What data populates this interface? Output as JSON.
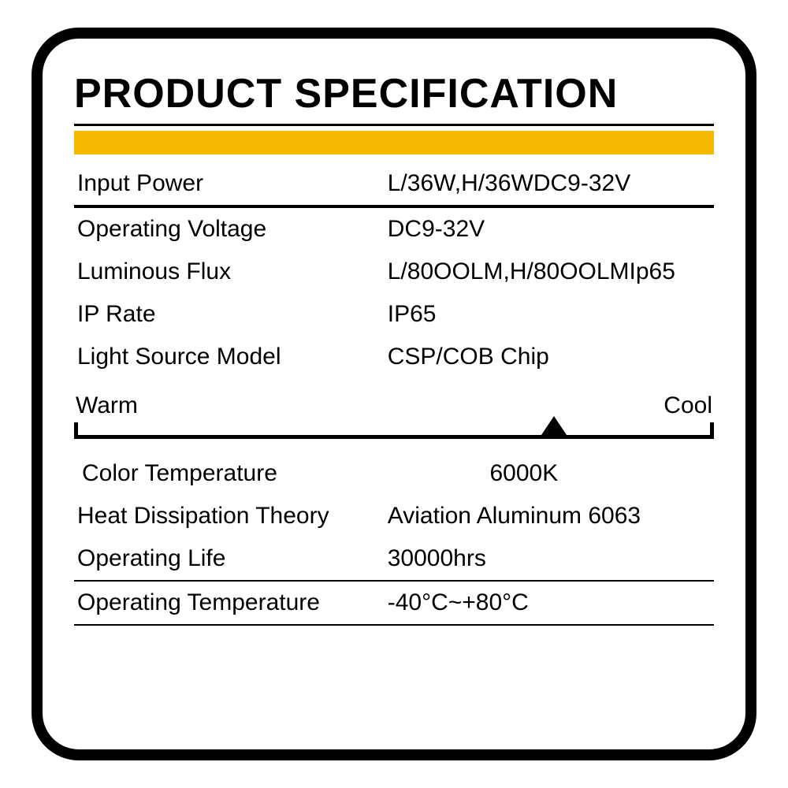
{
  "title": "PRODUCT SPECIFICATION",
  "accent_color": "#f6b800",
  "border_color": "#000000",
  "background_color": "#ffffff",
  "text_color": "#000000",
  "title_fontsize": 52,
  "body_fontsize": 30,
  "border_width": 14,
  "border_radius": 60,
  "layout": {
    "label_col_pct": 48,
    "value_col_pct": 52
  },
  "group1": [
    {
      "label": "Input Power",
      "value": "L/36W,H/36WDC9-32V"
    }
  ],
  "group2": [
    {
      "label": "Operating Voltage",
      "value": "DC9-32V"
    },
    {
      "label": "Luminous Flux",
      "value": "L/80OOLM,H/80OOLMIp65"
    },
    {
      "label": "IP Rate",
      "value": "IP65"
    },
    {
      "label": "Light Source Model",
      "value": "CSP/COB Chip"
    }
  ],
  "scale": {
    "left_label": "Warm",
    "right_label": "Cool",
    "marker_position_pct": 75,
    "line_color": "#000000",
    "line_width": 5,
    "marker_color": "#000000"
  },
  "color_temp": {
    "label": "Color Temperature",
    "value": "6000K"
  },
  "group3": [
    {
      "label": "Heat Dissipation Theory",
      "value": "Aviation Aluminum 6063"
    },
    {
      "label": "Operating Life",
      "value": "30000hrs"
    }
  ],
  "group4": [
    {
      "label": "Operating Temperature",
      "value": "-40°C~+80°C"
    }
  ]
}
